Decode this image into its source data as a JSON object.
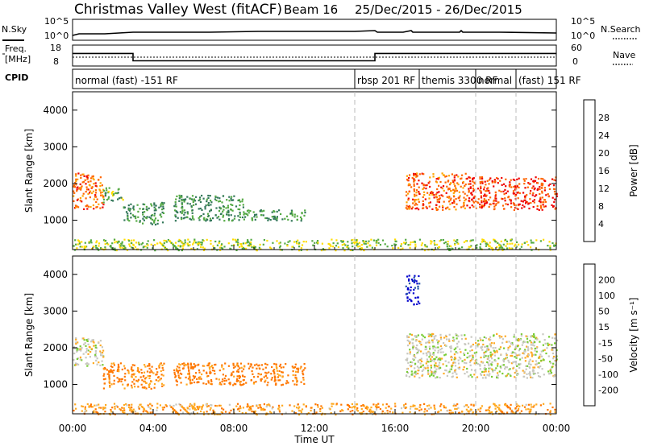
{
  "header": {
    "site": "Christmas Valley West (fitACF)",
    "beam": "Beam 16",
    "dates": "25/Dec/2015 - 26/Dec/2015"
  },
  "noise_panel": {
    "left_label": "N.Sky",
    "right_label": "N.Search",
    "left_ticks": [
      "10^5",
      "10^0"
    ],
    "right_ticks": [
      "10^5",
      "10^0"
    ]
  },
  "freq_panel": {
    "left_label_1": "Freq.",
    "left_label_2": "[MHz]",
    "right_label": "Nave",
    "left_ticks": [
      "18",
      "8"
    ],
    "right_ticks": [
      "60",
      "0"
    ]
  },
  "cpid": {
    "label": "CPID",
    "segments": [
      {
        "text": "normal (fast) -151 RF",
        "start_h": 0,
        "end_h": 14
      },
      {
        "text": "rbsp 201 RF",
        "start_h": 14,
        "end_h": 17.2
      },
      {
        "text": "themis 3300 RF",
        "start_h": 17.2,
        "end_h": 20
      },
      {
        "text": "normal",
        "start_h": 20,
        "end_h": 22
      },
      {
        "text": "(fast) 151 RF",
        "start_h": 22,
        "end_h": 24
      }
    ]
  },
  "time_axis": {
    "label": "Time UT",
    "ticks": [
      "00:00",
      "04:00",
      "08:00",
      "12:00",
      "16:00",
      "20:00",
      "00:00"
    ]
  },
  "power_panel": {
    "ylabel": "Slant Range [km]",
    "yticks": [
      "1000",
      "2000",
      "3000",
      "4000"
    ],
    "colorbar_label": "Power [dB]",
    "colorbar_ticks": [
      "4",
      "8",
      "12",
      "16",
      "20",
      "24",
      "28"
    ],
    "colors": [
      "#0000ee",
      "#2244bb",
      "#33775a",
      "#55aa44",
      "#ffdd00",
      "#ffa500",
      "#ff6600",
      "#ee0000"
    ]
  },
  "velocity_panel": {
    "ylabel": "Slant Range [km]",
    "yticks": [
      "1000",
      "2000",
      "3000",
      "4000"
    ],
    "colorbar_label": "Velocity [m s⁻¹]",
    "colorbar_ticks": [
      "200",
      "100",
      "50",
      "15",
      "-15",
      "-50",
      "-100",
      "-200"
    ],
    "colors": [
      "#0000cc",
      "#2255aa",
      "#3a8a3a",
      "#77cc33",
      "#c8c8c0",
      "#ffaa22",
      "#ff7700",
      "#ff3300",
      "#ee0000"
    ]
  },
  "chart_data": {
    "type": "heatmap",
    "x_unit": "hours UT from 25/Dec/2015 00:00",
    "xlim": [
      0,
      24
    ],
    "ylim_km": [
      200,
      4500
    ],
    "dashed_time_markers_h": [
      14,
      20,
      22
    ],
    "frequency_mhz": [
      {
        "start_h": 0,
        "end_h": 3,
        "value": 14
      },
      {
        "start_h": 3,
        "end_h": 15,
        "value": 10.5
      },
      {
        "start_h": 15,
        "end_h": 24,
        "value": 14
      }
    ],
    "nave_level": 28,
    "noise_level": "flat ~10^0-10^1",
    "power_regions": [
      {
        "t0": 0,
        "t1": 1.5,
        "r0": 1300,
        "r1": 2300,
        "db": 24
      },
      {
        "t0": 1.5,
        "t1": 2.5,
        "r0": 1500,
        "r1": 1900,
        "db": 12
      },
      {
        "t0": 2.5,
        "t1": 4.5,
        "r0": 900,
        "r1": 1500,
        "db": 10
      },
      {
        "t0": 5,
        "t1": 8.5,
        "r0": 1000,
        "r1": 1700,
        "db": 10
      },
      {
        "t0": 8.5,
        "t1": 11.5,
        "r0": 1000,
        "r1": 1300,
        "db": 10
      },
      {
        "t0": 16.5,
        "t1": 19.5,
        "r0": 1300,
        "r1": 2300,
        "db": 24
      },
      {
        "t0": 19.5,
        "t1": 24,
        "r0": 1300,
        "r1": 2200,
        "db": 26
      },
      {
        "t0": 0,
        "t1": 24,
        "r0": 200,
        "r1": 500,
        "db": 14
      }
    ],
    "velocity_regions": [
      {
        "t0": 0,
        "t1": 1.5,
        "r0": 1500,
        "r1": 2300,
        "v": 0
      },
      {
        "t0": 1.5,
        "t1": 4.5,
        "r0": 900,
        "r1": 1600,
        "v": -60
      },
      {
        "t0": 5,
        "t1": 11.5,
        "r0": 1000,
        "r1": 1600,
        "v": -70
      },
      {
        "t0": 16.5,
        "t1": 24,
        "r0": 1200,
        "r1": 2400,
        "v": 0
      },
      {
        "t0": 16.5,
        "t1": 17.2,
        "r0": 3200,
        "r1": 4000,
        "v": 220
      },
      {
        "t0": 0,
        "t1": 24,
        "r0": 200,
        "r1": 500,
        "v": -40
      }
    ]
  }
}
